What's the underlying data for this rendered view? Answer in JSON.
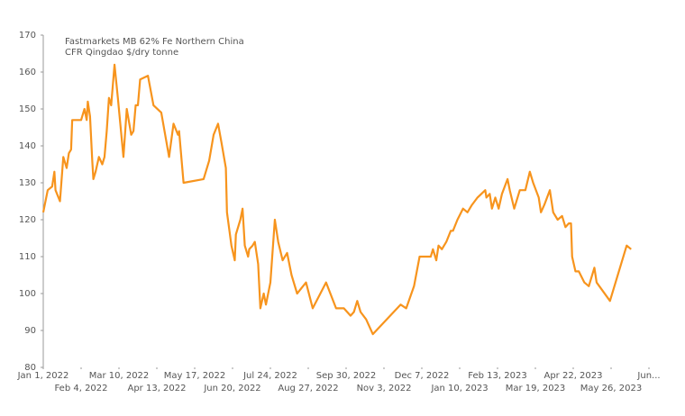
{
  "chart_data": {
    "type": "line",
    "title": "Fastmarkets MB 62% Fe Northern China",
    "subtitle": "CFR Qingdao $/dry tonne",
    "x": [
      "2022-01-01",
      "2022-01-05",
      "2022-01-09",
      "2022-01-11",
      "2022-01-12",
      "2022-01-16",
      "2022-01-19",
      "2022-01-22",
      "2022-01-24",
      "2022-01-26",
      "2022-01-27",
      "2022-01-31",
      "2022-02-04",
      "2022-02-07",
      "2022-02-09",
      "2022-02-10",
      "2022-02-12",
      "2022-02-14",
      "2022-02-15",
      "2022-02-17",
      "2022-02-20",
      "2022-02-23",
      "2022-02-25",
      "2022-02-27",
      "2022-03-01",
      "2022-03-03",
      "2022-03-06",
      "2022-03-09",
      "2022-03-14",
      "2022-03-17",
      "2022-03-21",
      "2022-03-23",
      "2022-03-25",
      "2022-03-27",
      "2022-03-29",
      "2022-04-05",
      "2022-04-10",
      "2022-04-17",
      "2022-04-24",
      "2022-04-28",
      "2022-05-02",
      "2022-05-03",
      "2022-05-07",
      "2022-05-25",
      "2022-05-30",
      "2022-06-03",
      "2022-06-07",
      "2022-06-10",
      "2022-06-14",
      "2022-06-15",
      "2022-06-19",
      "2022-06-22",
      "2022-06-23",
      "2022-06-27",
      "2022-06-29",
      "2022-07-01",
      "2022-07-04",
      "2022-07-05",
      "2022-07-08",
      "2022-07-10",
      "2022-07-13",
      "2022-07-15",
      "2022-07-18",
      "2022-07-20",
      "2022-07-24",
      "2022-07-28",
      "2022-07-31",
      "2022-08-04",
      "2022-08-08",
      "2022-08-12",
      "2022-08-17",
      "2022-08-25",
      "2022-08-31",
      "2022-09-12",
      "2022-09-21",
      "2022-09-28",
      "2022-10-04",
      "2022-10-07",
      "2022-10-10",
      "2022-10-13",
      "2022-10-18",
      "2022-10-24",
      "2022-11-18",
      "2022-11-23",
      "2022-11-30",
      "2022-12-05",
      "2022-12-15",
      "2022-12-17",
      "2022-12-20",
      "2022-12-22",
      "2022-12-25",
      "2022-12-29",
      "2023-01-02",
      "2023-01-04",
      "2023-01-08",
      "2023-01-13",
      "2023-01-17",
      "2023-01-21",
      "2023-01-26",
      "2023-02-02",
      "2023-02-03",
      "2023-02-06",
      "2023-02-08",
      "2023-02-11",
      "2023-02-14",
      "2023-02-17",
      "2023-02-22",
      "2023-02-24",
      "2023-02-28",
      "2023-03-05",
      "2023-03-10",
      "2023-03-14",
      "2023-03-17",
      "2023-03-22",
      "2023-03-24",
      "2023-03-27",
      "2023-04-01",
      "2023-04-04",
      "2023-04-08",
      "2023-04-12",
      "2023-04-15",
      "2023-04-18",
      "2023-04-20",
      "2023-04-21",
      "2023-04-24",
      "2023-04-27",
      "2023-05-02",
      "2023-05-06",
      "2023-05-11",
      "2023-05-13",
      "2023-05-25",
      "2023-06-09",
      "2023-06-13"
    ],
    "series": [
      {
        "name": "Fastmarkets MB 62% Fe Northern China",
        "color": "#f7941d",
        "values": [
          122,
          128,
          129,
          133,
          128,
          125,
          137,
          134,
          138,
          139,
          147,
          147,
          147,
          150,
          147,
          152,
          148,
          136,
          131,
          133,
          137,
          135,
          137,
          144,
          153,
          151,
          162,
          153,
          137,
          150,
          143,
          144,
          151,
          151,
          158,
          159,
          151,
          149,
          137,
          146,
          143,
          144,
          130,
          131,
          136,
          143,
          146,
          141,
          134,
          122,
          113,
          109,
          116,
          120,
          123,
          113,
          110,
          112,
          113,
          114,
          108,
          96,
          100,
          97,
          103,
          120,
          114,
          109,
          111,
          105,
          100,
          103,
          96,
          103,
          96,
          96,
          94,
          95,
          98,
          95,
          93,
          89,
          97,
          96,
          102,
          110,
          110,
          112,
          109,
          113,
          112,
          114,
          117,
          117,
          120,
          123,
          122,
          124,
          126,
          128,
          126,
          127,
          123,
          126,
          123,
          127,
          131,
          128,
          123,
          128,
          128,
          133,
          130,
          126,
          122,
          124,
          128,
          122,
          120,
          121,
          118,
          119,
          119,
          110,
          106,
          106,
          103,
          102,
          107,
          103,
          98,
          113,
          112
        ]
      }
    ],
    "xlim": [
      "2022-01-01",
      "2023-06-29"
    ],
    "xticks": [
      {
        "value": "2022-01-01",
        "label": "Jan 1, 2022"
      },
      {
        "value": "2022-02-04",
        "label": "Feb 4, 2022"
      },
      {
        "value": "2022-03-10",
        "label": "Mar 10, 2022"
      },
      {
        "value": "2022-04-13",
        "label": "Apr 13, 2022"
      },
      {
        "value": "2022-05-17",
        "label": "May 17, 2022"
      },
      {
        "value": "2022-06-20",
        "label": "Jun 20, 2022"
      },
      {
        "value": "2022-07-24",
        "label": "Jul 24, 2022"
      },
      {
        "value": "2022-08-27",
        "label": "Aug 27, 2022"
      },
      {
        "value": "2022-09-30",
        "label": "Sep 30, 2022"
      },
      {
        "value": "2022-11-03",
        "label": "Nov 3, 2022"
      },
      {
        "value": "2022-12-07",
        "label": "Dec 7, 2022"
      },
      {
        "value": "2023-01-10",
        "label": "Jan 10, 2023"
      },
      {
        "value": "2023-02-13",
        "label": "Feb 13, 2023"
      },
      {
        "value": "2023-03-19",
        "label": "Mar 19, 2023"
      },
      {
        "value": "2023-04-22",
        "label": "Apr 22, 2023"
      },
      {
        "value": "2023-05-26",
        "label": "May 26, 2023"
      },
      {
        "value": "2023-06-29",
        "label": "Jun..."
      }
    ],
    "ylim": [
      80,
      170
    ],
    "yticks": [
      80,
      90,
      100,
      110,
      120,
      130,
      140,
      150,
      160,
      170
    ]
  }
}
